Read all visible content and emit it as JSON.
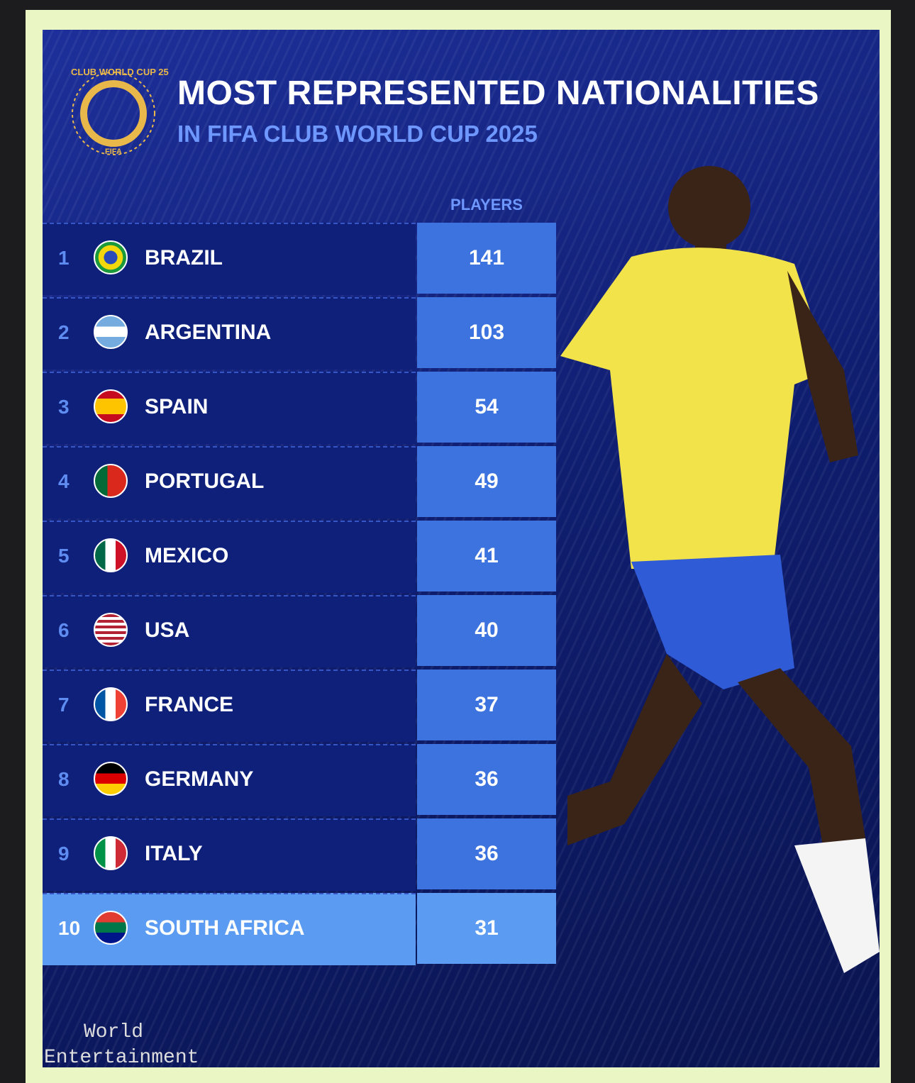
{
  "header": {
    "logo_text": "CLUB WORLD CUP 25",
    "logo_org": "FIFA",
    "title": "MOST REPRESENTED NATIONALITIES",
    "subtitle": "IN FIFA CLUB WORLD CUP 2025"
  },
  "table": {
    "column_header": "PLAYERS",
    "rows": [
      [
        1,
        "BRAZIL",
        141
      ],
      [
        2,
        "ARGENTINA",
        103
      ],
      [
        3,
        "SPAIN",
        54
      ],
      [
        4,
        "PORTUGAL",
        49
      ],
      [
        5,
        "MEXICO",
        41
      ],
      [
        6,
        "USA",
        40
      ],
      [
        7,
        "FRANCE",
        37
      ],
      [
        8,
        "GERMANY",
        36
      ],
      [
        9,
        "ITALY",
        36
      ],
      [
        10,
        "SOUTH AFRICA",
        31
      ]
    ]
  },
  "watermark": {
    "line1": "World",
    "line2": "Entertainment"
  }
}
